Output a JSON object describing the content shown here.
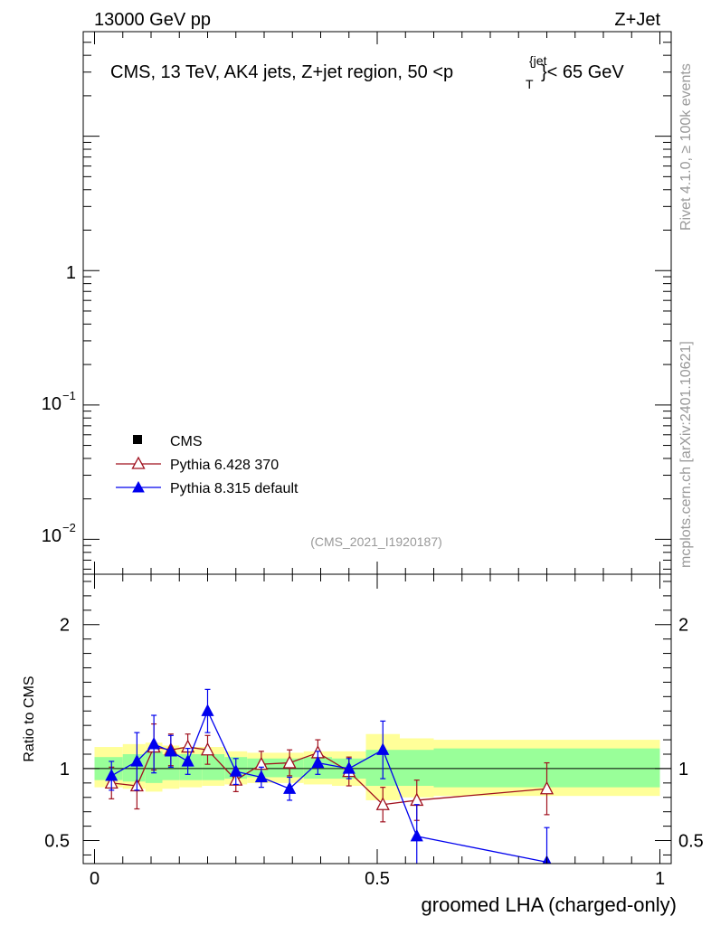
{
  "header": {
    "left": "13000 GeV pp",
    "right": "Z+Jet"
  },
  "side_labels": {
    "rivet": "Rivet 4.1.0, ≥ 100k events",
    "mcplots": "mcplots.cern.ch [arXiv:2401.10621]"
  },
  "colors": {
    "pythia6": "#a0101e",
    "pythia8": "#0000ee",
    "band_inner": "#99ff99",
    "band_outer": "#ffff99",
    "watermark": "#999999"
  },
  "chart_data": [
    {
      "type": "line",
      "panel": "main",
      "title": "CMS, 13 TeV, AK4 jets, Z+jet region, 50 <p",
      "title_sup": "{jet",
      "title_sub": "T",
      "title_tail": "}< 65 GeV",
      "watermark": "(CMS_2021_I1920187)",
      "yscale": "log",
      "ylim": [
        0.0055,
        60
      ],
      "xlim": [
        -0.02,
        1.02
      ],
      "y_tick_labels": [
        {
          "value": 1,
          "label": "1",
          "sup": ""
        },
        {
          "value": 0.1,
          "label": "10",
          "sup": "−1"
        },
        {
          "value": 0.01,
          "label": "10",
          "sup": "−2"
        }
      ],
      "legend": [
        {
          "name": "CMS",
          "marker": "square"
        },
        {
          "name": "Pythia 6.428 370",
          "marker": "open-triangle"
        },
        {
          "name": "Pythia 8.315 default",
          "marker": "filled-triangle"
        }
      ],
      "legend_position": "lower-left"
    },
    {
      "type": "line",
      "panel": "ratio",
      "ylabel": "Ratio to CMS",
      "xlabel": "groomed LHA (charged-only)",
      "xlim": [
        -0.02,
        1.02
      ],
      "ylim": [
        0.34,
        2.35
      ],
      "x_tick_labels": [
        "0",
        "0.5",
        "1"
      ],
      "x_ticks": [
        0,
        0.5,
        1
      ],
      "y_tick_labels": [
        "0.5",
        "1",
        "2"
      ],
      "y_ticks": [
        0.5,
        1,
        2
      ],
      "reference_line": 1,
      "band_edges": [
        0,
        0.05,
        0.09,
        0.12,
        0.15,
        0.19,
        0.23,
        0.27,
        0.32,
        0.37,
        0.42,
        0.48,
        0.54,
        0.6,
        1.0
      ],
      "band_inner": [
        [
          0.92,
          1.08
        ],
        [
          0.91,
          1.1
        ],
        [
          0.9,
          1.12
        ],
        [
          0.92,
          1.1
        ],
        [
          0.92,
          1.1
        ],
        [
          0.92,
          1.1
        ],
        [
          0.93,
          1.08
        ],
        [
          0.94,
          1.07
        ],
        [
          0.94,
          1.07
        ],
        [
          0.93,
          1.08
        ],
        [
          0.93,
          1.07
        ],
        [
          0.88,
          1.13
        ],
        [
          0.88,
          1.13
        ],
        [
          0.87,
          1.14
        ]
      ],
      "band_outer": [
        [
          0.87,
          1.15
        ],
        [
          0.86,
          1.17
        ],
        [
          0.84,
          1.18
        ],
        [
          0.86,
          1.16
        ],
        [
          0.87,
          1.15
        ],
        [
          0.88,
          1.15
        ],
        [
          0.89,
          1.12
        ],
        [
          0.9,
          1.11
        ],
        [
          0.9,
          1.11
        ],
        [
          0.89,
          1.12
        ],
        [
          0.88,
          1.12
        ],
        [
          0.78,
          1.24
        ],
        [
          0.8,
          1.21
        ],
        [
          0.81,
          1.2
        ]
      ],
      "series": [
        {
          "name": "Pythia 6.428 370",
          "color": "#a0101e",
          "x": [
            0.03,
            0.075,
            0.105,
            0.135,
            0.165,
            0.2,
            0.25,
            0.295,
            0.345,
            0.395,
            0.45,
            0.51,
            0.57,
            0.8
          ],
          "y": [
            0.9,
            0.88,
            1.15,
            1.13,
            1.15,
            1.13,
            0.92,
            1.03,
            1.04,
            1.11,
            0.98,
            0.75,
            0.78,
            0.86
          ],
          "err": [
            0.11,
            0.16,
            0.16,
            0.11,
            0.09,
            0.1,
            0.08,
            0.09,
            0.09,
            0.09,
            0.1,
            0.12,
            0.14,
            0.18
          ]
        },
        {
          "name": "Pythia 8.315 default",
          "color": "#0000ee",
          "x": [
            0.03,
            0.075,
            0.105,
            0.135,
            0.165,
            0.2,
            0.25,
            0.295,
            0.345,
            0.395,
            0.45,
            0.51,
            0.57,
            0.8
          ],
          "y": [
            0.95,
            1.05,
            1.17,
            1.12,
            1.05,
            1.4,
            0.98,
            0.94,
            0.86,
            1.04,
            1.0,
            1.13,
            0.53,
            0.35
          ],
          "err": [
            0.1,
            0.2,
            0.2,
            0.11,
            0.09,
            0.15,
            0.09,
            0.07,
            0.08,
            0.08,
            0.07,
            0.2,
            0.22,
            0.24
          ]
        }
      ]
    }
  ]
}
